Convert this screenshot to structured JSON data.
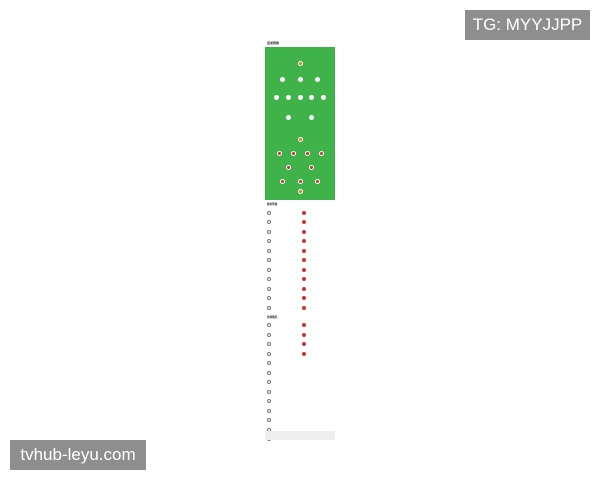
{
  "watermarks": {
    "top_right": "TG: MYYJJPP",
    "bottom_left": "tvhub-leyu.com"
  },
  "lineup": {
    "title": "首发阵容",
    "subtitle": "",
    "home_color": "#c62f2f",
    "away_color": "#ffffff",
    "gk_color": "#e07a1f",
    "pitch_color": "#3fb24a"
  },
  "away_rows": [
    [
      ""
    ],
    [
      "",
      "",
      ""
    ],
    [
      "",
      "",
      "",
      "",
      ""
    ],
    [
      "",
      ""
    ]
  ],
  "home_rows": [
    [
      ""
    ],
    [
      "",
      "",
      ""
    ],
    [
      "",
      ""
    ],
    [
      "",
      "",
      "",
      ""
    ],
    [
      ""
    ]
  ],
  "subs": {
    "title": "替补阵容",
    "rows": 11
  },
  "injuries": {
    "title": "伤停情况",
    "left_rows": 13,
    "right_rows": 4
  }
}
